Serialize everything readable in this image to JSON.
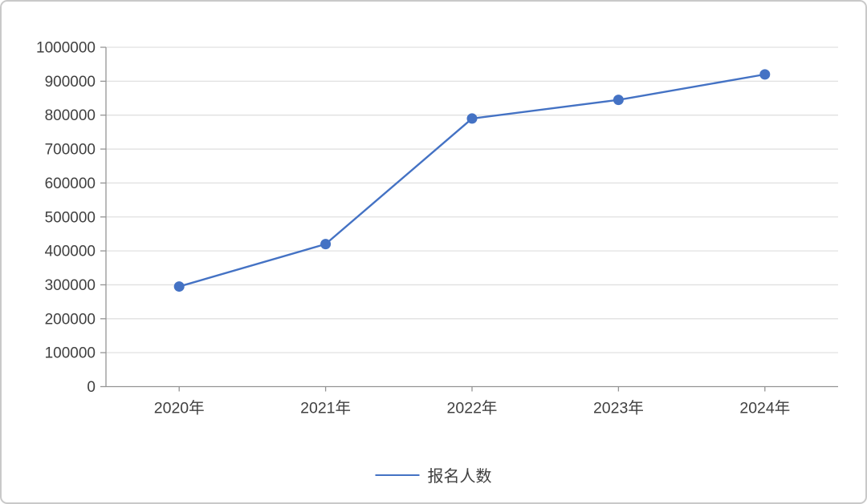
{
  "chart_data": {
    "type": "line",
    "title": "",
    "xlabel": "",
    "ylabel": "",
    "categories": [
      "2020年",
      "2021年",
      "2022年",
      "2023年",
      "2024年"
    ],
    "series": [
      {
        "name": "报名人数",
        "values": [
          295000,
          420000,
          790000,
          845000,
          920000
        ]
      }
    ],
    "ylim": [
      0,
      1000000
    ],
    "ytick_step": 100000,
    "ytick_labels": [
      "0",
      "100000",
      "200000",
      "300000",
      "400000",
      "500000",
      "600000",
      "700000",
      "800000",
      "900000",
      "1000000"
    ],
    "grid": "horizontal-only",
    "legend": {
      "position": "bottom-center",
      "entries": [
        "报名人数"
      ]
    },
    "marker": "circle",
    "colors": {
      "series": "#4472C4",
      "gridline": "#E0E0E0",
      "axis": "#949494",
      "text": "#404040",
      "frame_border": "#C9C9C9",
      "background": "#FFFFFF"
    }
  }
}
